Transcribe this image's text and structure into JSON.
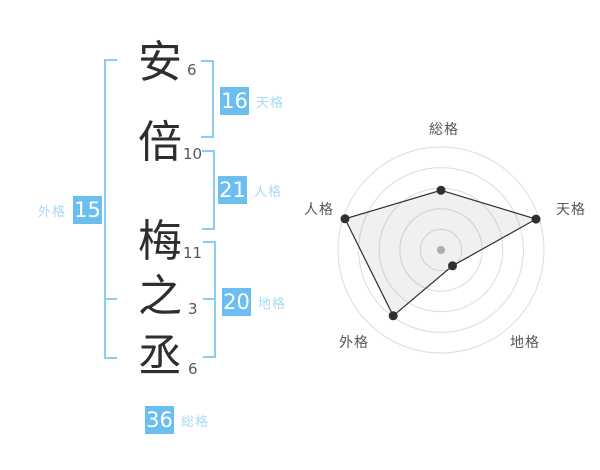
{
  "name_analysis": {
    "characters": [
      {
        "char": "安",
        "strokes": "6"
      },
      {
        "char": "倍",
        "strokes": "10"
      },
      {
        "char": "梅",
        "strokes": "11"
      },
      {
        "char": "之",
        "strokes": "3"
      },
      {
        "char": "丞",
        "strokes": "6"
      }
    ],
    "groups": {
      "tenkaku": {
        "value": "16",
        "label": "天格"
      },
      "jinkaku": {
        "value": "21",
        "label": "人格"
      },
      "chikaku": {
        "value": "20",
        "label": "地格"
      },
      "gaikaku": {
        "value": "15",
        "label": "外格"
      },
      "soukaku": {
        "value": "36",
        "label": "総格"
      }
    }
  },
  "chart_data": {
    "type": "radar",
    "title": "",
    "rings": 5,
    "max_radius_px": 103,
    "grid": "concentric-circles",
    "axes": [
      {
        "label": "総格",
        "value": 36,
        "radius_frac": 0.58,
        "angle_deg": -90
      },
      {
        "label": "天格",
        "value": 16,
        "radius_frac": 0.97,
        "angle_deg": -18
      },
      {
        "label": "地格",
        "value": 20,
        "radius_frac": 0.19,
        "angle_deg": 54
      },
      {
        "label": "外格",
        "value": 15,
        "radius_frac": 0.79,
        "angle_deg": 126
      },
      {
        "label": "人格",
        "value": 21,
        "radius_frac": 0.98,
        "angle_deg": 198
      }
    ]
  },
  "colors": {
    "accent": "#6bbef0",
    "accent-light": "#a6d9f6",
    "bracket": "#8ccdf3",
    "text-dark": "#2e2e2e",
    "text-gray": "#575757",
    "ring": "#dcdcdc",
    "center-dot": "#b8b8b8",
    "poly-stroke": "#2f2f2f",
    "poly-fill": "rgba(0,0,0,0.06)"
  }
}
